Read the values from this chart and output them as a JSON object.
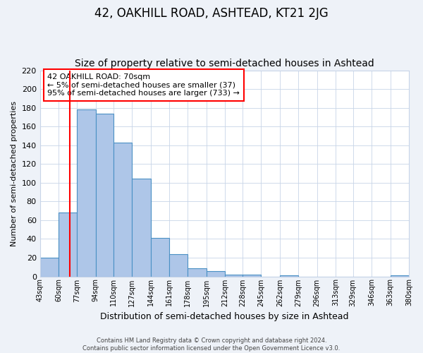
{
  "title": "42, OAKHILL ROAD, ASHTEAD, KT21 2JG",
  "subtitle": "Size of property relative to semi-detached houses in Ashtead",
  "xlabel": "Distribution of semi-detached houses by size in Ashtead",
  "ylabel": "Number of semi-detached properties",
  "bin_edges": [
    43,
    60,
    77,
    94,
    110,
    127,
    144,
    161,
    178,
    195,
    212,
    228,
    245,
    262,
    279,
    296,
    313,
    329,
    346,
    363,
    380
  ],
  "bar_heights": [
    20,
    68,
    178,
    174,
    143,
    104,
    41,
    24,
    9,
    6,
    2,
    2,
    0,
    1,
    0,
    0,
    0,
    0,
    0,
    1
  ],
  "bar_facecolor": "#aec6e8",
  "bar_edgecolor": "#4a90c4",
  "vline_x": 70,
  "vline_color": "red",
  "ylim": [
    0,
    220
  ],
  "yticks": [
    0,
    20,
    40,
    60,
    80,
    100,
    120,
    140,
    160,
    180,
    200,
    220
  ],
  "xtick_labels": [
    "43sqm",
    "60sqm",
    "77sqm",
    "94sqm",
    "110sqm",
    "127sqm",
    "144sqm",
    "161sqm",
    "178sqm",
    "195sqm",
    "212sqm",
    "228sqm",
    "245sqm",
    "262sqm",
    "279sqm",
    "296sqm",
    "313sqm",
    "329sqm",
    "346sqm",
    "363sqm",
    "380sqm"
  ],
  "annotation_title": "42 OAKHILL ROAD: 70sqm",
  "annotation_line1": "← 5% of semi-detached houses are smaller (37)",
  "annotation_line2": "95% of semi-detached houses are larger (733) →",
  "footer_line1": "Contains HM Land Registry data © Crown copyright and database right 2024.",
  "footer_line2": "Contains public sector information licensed under the Open Government Licence v3.0.",
  "background_color": "#eef2f8",
  "plot_background": "#ffffff",
  "grid_color": "#c8d4e8",
  "title_fontsize": 12,
  "subtitle_fontsize": 10,
  "annotation_fontsize": 8,
  "ylabel_fontsize": 8,
  "xlabel_fontsize": 9,
  "footer_fontsize": 6,
  "ytick_fontsize": 8,
  "xtick_fontsize": 7
}
